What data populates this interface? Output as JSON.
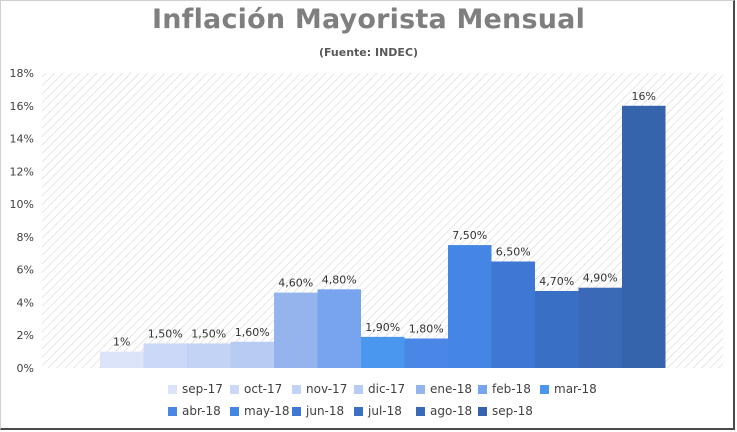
{
  "chart_data": {
    "type": "bar",
    "title": "Inflación Mayorista Mensual",
    "subtitle": "(Fuente: INDEC)",
    "categories": [
      "sep-17",
      "oct-17",
      "nov-17",
      "dic-17",
      "ene-18",
      "feb-18",
      "mar-18",
      "abr-18",
      "may-18",
      "jun-18",
      "jul-18",
      "ago-18",
      "sep-18"
    ],
    "values": [
      1.0,
      1.5,
      1.5,
      1.6,
      4.6,
      4.8,
      1.9,
      1.8,
      7.5,
      6.5,
      4.7,
      4.9,
      16.0
    ],
    "data_labels": [
      "1%",
      "1,50%",
      "1,50%",
      "1,60%",
      "4,60%",
      "4,80%",
      "1,90%",
      "1,80%",
      "7,50%",
      "6,50%",
      "4,70%",
      "4,90%",
      "16%"
    ],
    "colors": [
      "#dbe4f8",
      "#cbd8f7",
      "#c3d3f5",
      "#b7ccf3",
      "#95b4ee",
      "#78a3ee",
      "#4a97f0",
      "#4a86e6",
      "#4585e3",
      "#3f78d4",
      "#3a6fc6",
      "#3a69b8",
      "#3564ad"
    ],
    "ylim": [
      0,
      18
    ],
    "yticks": [
      0,
      2,
      4,
      6,
      8,
      10,
      12,
      14,
      16,
      18
    ],
    "ytick_labels": [
      "0%",
      "2%",
      "4%",
      "6%",
      "8%",
      "10%",
      "12%",
      "14%",
      "16%",
      "18%"
    ],
    "grid": false,
    "legend_position": "bottom"
  }
}
